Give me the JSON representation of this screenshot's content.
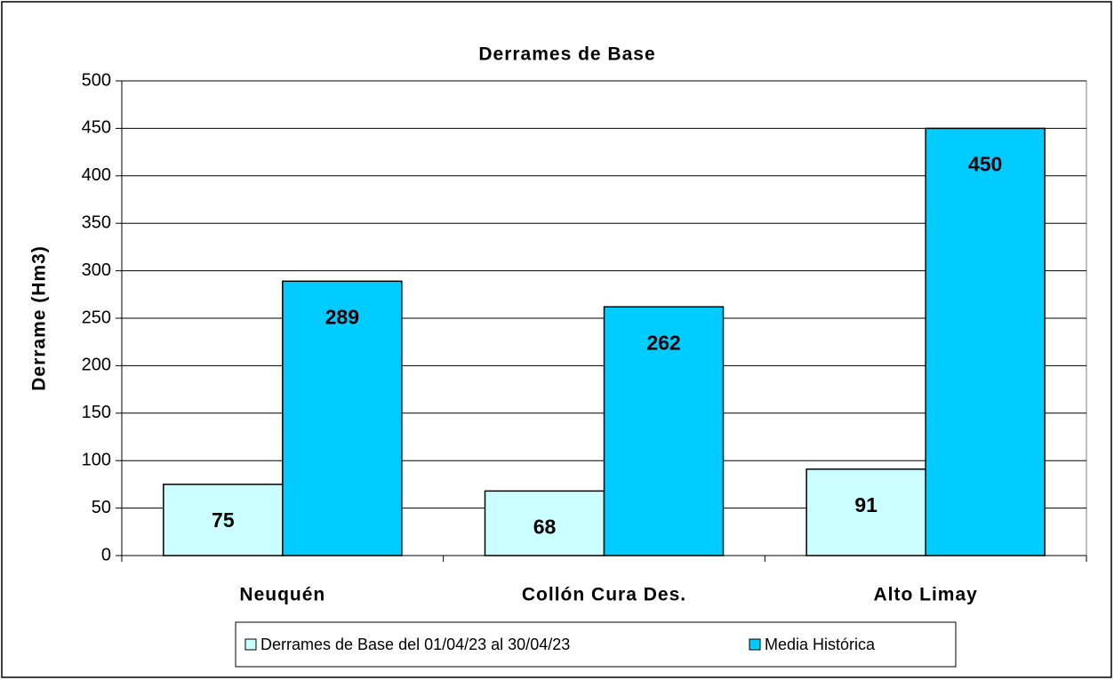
{
  "chart_data": {
    "type": "bar",
    "title": "Derrames de Base",
    "y_label": "Derrame (Hm3)",
    "categories": [
      "Neuquén",
      "Collón Cura Des.",
      "Alto Limay"
    ],
    "series": [
      {
        "name": "Derrames de Base del 01/04/23 al 30/04/23",
        "color": "#ccffff",
        "values": [
          75,
          68,
          91
        ]
      },
      {
        "name": "Media Histórica",
        "color": "#00ccff",
        "values": [
          289,
          262,
          450
        ]
      }
    ],
    "ylim": [
      0,
      500
    ],
    "yticks": [
      0,
      50,
      100,
      150,
      200,
      250,
      300,
      350,
      400,
      450,
      500
    ],
    "grid": true,
    "legend": "bottom"
  }
}
